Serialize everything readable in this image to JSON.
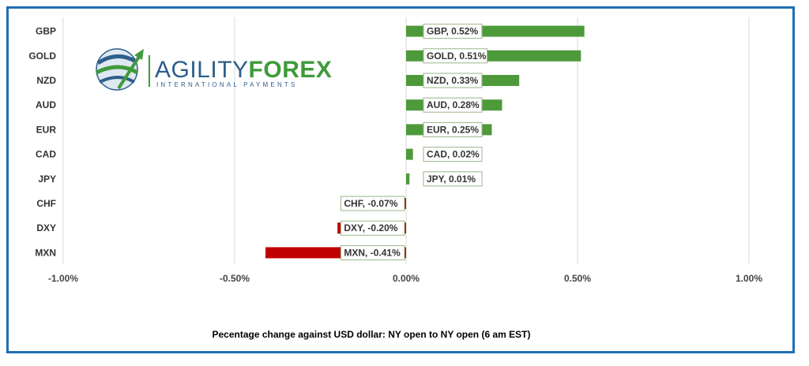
{
  "chart_data": {
    "type": "bar",
    "orientation": "horizontal",
    "categories": [
      "GBP",
      "GOLD",
      "NZD",
      "AUD",
      "EUR",
      "CAD",
      "JPY",
      "CHF",
      "DXY",
      "MXN"
    ],
    "values": [
      0.52,
      0.51,
      0.33,
      0.28,
      0.25,
      0.02,
      0.01,
      -0.07,
      -0.2,
      -0.41
    ],
    "data_labels": [
      "GBP, 0.52%",
      "GOLD, 0.51%",
      "NZD, 0.33%",
      "AUD, 0.28%",
      "EUR, 0.25%",
      "CAD, 0.02%",
      "JPY, 0.01%",
      "CHF, -0.07%",
      "DXY, -0.20%",
      "MXN, -0.41%"
    ],
    "xlim": [
      -1.0,
      1.0
    ],
    "xticks": [
      -1.0,
      -0.5,
      0.0,
      0.5,
      1.0
    ],
    "xtick_labels": [
      "-1.00%",
      "-0.50%",
      "0.00%",
      "0.50%",
      "1.00%"
    ],
    "grid": "vertical",
    "positive_color": "#4e9a3b",
    "negative_color": "#c00000",
    "caption": "Pecentage change against USD dollar:  NY open to NY open  (6 am EST)"
  },
  "logo": {
    "word_light": "AGILITY",
    "word_bold": "FOREX",
    "tagline": "INTERNATIONAL PAYMENTS",
    "colors": {
      "blue": "#2d5e8c",
      "green": "#3f9a3a"
    }
  },
  "frame_color": "#1f6fb5"
}
